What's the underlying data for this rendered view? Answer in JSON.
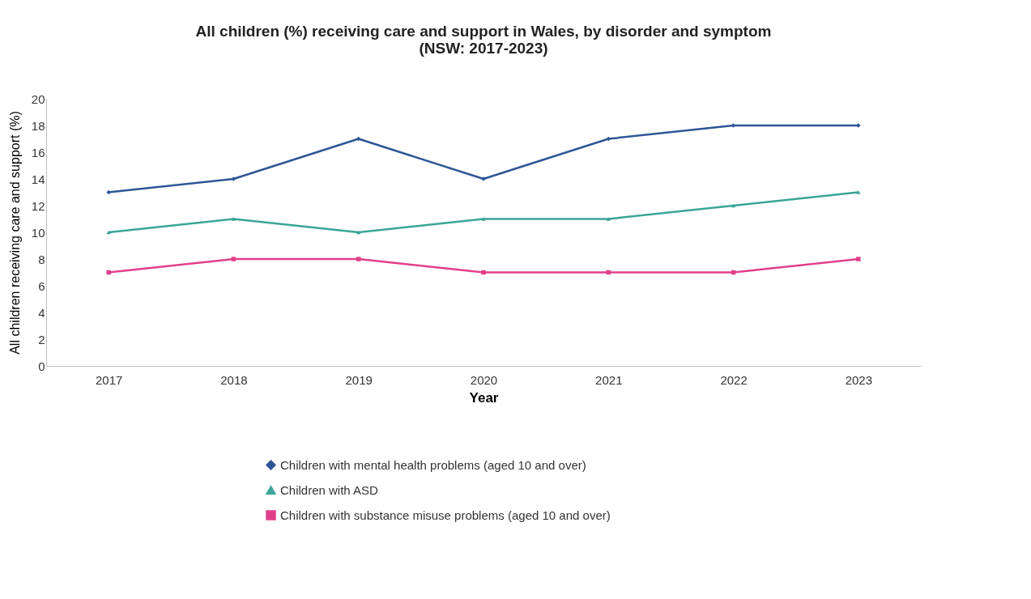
{
  "chart_data": {
    "type": "line",
    "title": "All children (%) receiving care and support in Wales, by disorder and symptom (NSW: 2017-2023)",
    "xlabel": "Year",
    "ylabel": "All children receiving care and support (%)",
    "categories": [
      "2017",
      "2018",
      "2019",
      "2020",
      "2021",
      "2022",
      "2023"
    ],
    "series": [
      {
        "name": "Children with mental health problems (aged 10 and over)",
        "color": "#2f5597",
        "marker": "diamond",
        "values": [
          13,
          14,
          17,
          14,
          17,
          18,
          18
        ]
      },
      {
        "name": "Children with ASD",
        "color": "#3aa597",
        "marker": "triangle",
        "values": [
          10,
          11,
          10,
          11,
          11,
          12,
          13
        ]
      },
      {
        "name": "Children with substance misuse problems (aged 10 and over)",
        "color": "#e0408a",
        "marker": "square",
        "values": [
          7,
          8,
          8,
          7,
          7,
          7,
          8
        ]
      }
    ],
    "ylim": [
      0,
      20
    ],
    "yticks": [
      0,
      2,
      4,
      6,
      8,
      10,
      12,
      14,
      16,
      18,
      20
    ],
    "grid": false,
    "legend": "bottom",
    "line_style": "solid"
  }
}
